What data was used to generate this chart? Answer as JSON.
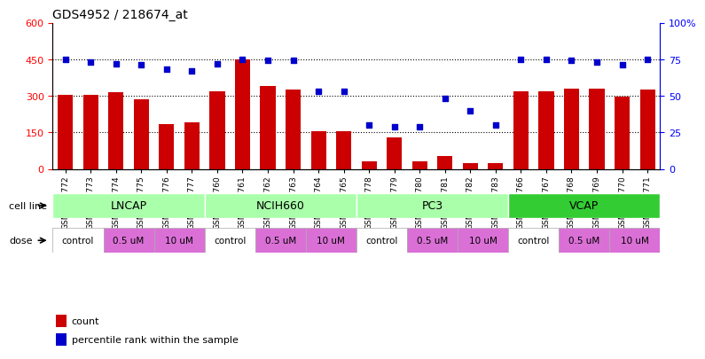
{
  "title": "GDS4952 / 218674_at",
  "samples": [
    "GSM1359772",
    "GSM1359773",
    "GSM1359774",
    "GSM1359775",
    "GSM1359776",
    "GSM1359777",
    "GSM1359760",
    "GSM1359761",
    "GSM1359762",
    "GSM1359763",
    "GSM1359764",
    "GSM1359765",
    "GSM1359778",
    "GSM1359779",
    "GSM1359780",
    "GSM1359781",
    "GSM1359782",
    "GSM1359783",
    "GSM1359766",
    "GSM1359767",
    "GSM1359768",
    "GSM1359769",
    "GSM1359770",
    "GSM1359771"
  ],
  "counts": [
    305,
    305,
    315,
    285,
    185,
    190,
    320,
    450,
    340,
    325,
    155,
    155,
    30,
    130,
    30,
    55,
    25,
    25,
    320,
    320,
    330,
    330,
    295,
    325
  ],
  "percentiles": [
    75,
    73,
    72,
    71,
    68,
    67,
    72,
    75,
    74,
    74,
    53,
    53,
    30,
    29,
    29,
    48,
    40,
    30,
    75,
    75,
    74,
    73,
    71,
    75
  ],
  "cell_lines": [
    {
      "label": "LNCAP",
      "start": 0,
      "end": 6,
      "color": "#90EE90"
    },
    {
      "label": "NCIH660",
      "start": 6,
      "end": 12,
      "color": "#90EE90"
    },
    {
      "label": "PC3",
      "start": 12,
      "end": 18,
      "color": "#90EE90"
    },
    {
      "label": "VCAP",
      "start": 18,
      "end": 24,
      "color": "#32CD32"
    }
  ],
  "dose_groups": [
    {
      "label": "control",
      "start": 0,
      "end": 2,
      "color": "#FFFFFF"
    },
    {
      "label": "0.5 uM",
      "start": 2,
      "end": 4,
      "color": "#DA70D6"
    },
    {
      "label": "10 uM",
      "start": 4,
      "end": 6,
      "color": "#DA70D6"
    },
    {
      "label": "control",
      "start": 6,
      "end": 8,
      "color": "#FFFFFF"
    },
    {
      "label": "0.5 uM",
      "start": 8,
      "end": 10,
      "color": "#DA70D6"
    },
    {
      "label": "10 uM",
      "start": 10,
      "end": 12,
      "color": "#DA70D6"
    },
    {
      "label": "control",
      "start": 12,
      "end": 14,
      "color": "#FFFFFF"
    },
    {
      "label": "0.5 uM",
      "start": 14,
      "end": 16,
      "color": "#DA70D6"
    },
    {
      "label": "10 uM",
      "start": 16,
      "end": 18,
      "color": "#DA70D6"
    },
    {
      "label": "control",
      "start": 18,
      "end": 20,
      "color": "#FFFFFF"
    },
    {
      "label": "0.5 uM",
      "start": 20,
      "end": 22,
      "color": "#DA70D6"
    },
    {
      "label": "10 uM",
      "start": 22,
      "end": 24,
      "color": "#DA70D6"
    }
  ],
  "bar_color": "#CC0000",
  "dot_color": "#0000CC",
  "ylim_left": [
    0,
    600
  ],
  "ylim_right": [
    0,
    100
  ],
  "yticks_left": [
    0,
    150,
    300,
    450,
    600
  ],
  "yticks_right": [
    0,
    25,
    50,
    75,
    100
  ],
  "ylabel_left": "",
  "ylabel_right": "",
  "background_color": "#FFFFFF",
  "grid_color": "#000000",
  "legend_count_color": "#CC0000",
  "legend_dot_color": "#0000CC"
}
